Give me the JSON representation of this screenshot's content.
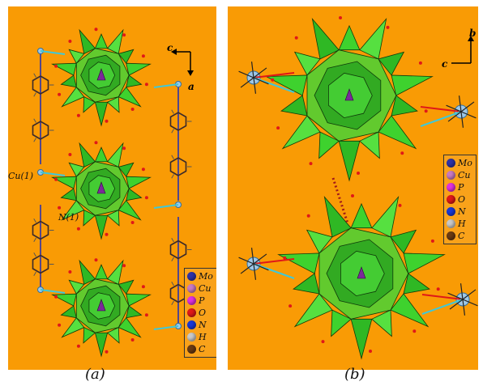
{
  "panel_a": {
    "caption": "(a)",
    "labels": {
      "n1": "N(1)",
      "cu1": "Cu(1)"
    },
    "axes": {
      "horizontal": "c",
      "vertical": "a"
    }
  },
  "panel_b": {
    "caption": "(b)",
    "axes": {
      "horizontal": "c",
      "vertical": "b"
    }
  },
  "legend": [
    {
      "label": "Mo",
      "color": "#2d32a8"
    },
    {
      "label": "Cu",
      "color": "#c77ac2"
    },
    {
      "label": "P",
      "color": "#e030e0"
    },
    {
      "label": "O",
      "color": "#e01818"
    },
    {
      "label": "N",
      "color": "#1838d8"
    },
    {
      "label": "H",
      "color": "#c8c8c8"
    },
    {
      "label": "C",
      "color": "#6a3a12"
    }
  ],
  "colors": {
    "background": "#f99b05",
    "polyhedra": "#3ed22e",
    "bond": "#40c8d8"
  }
}
